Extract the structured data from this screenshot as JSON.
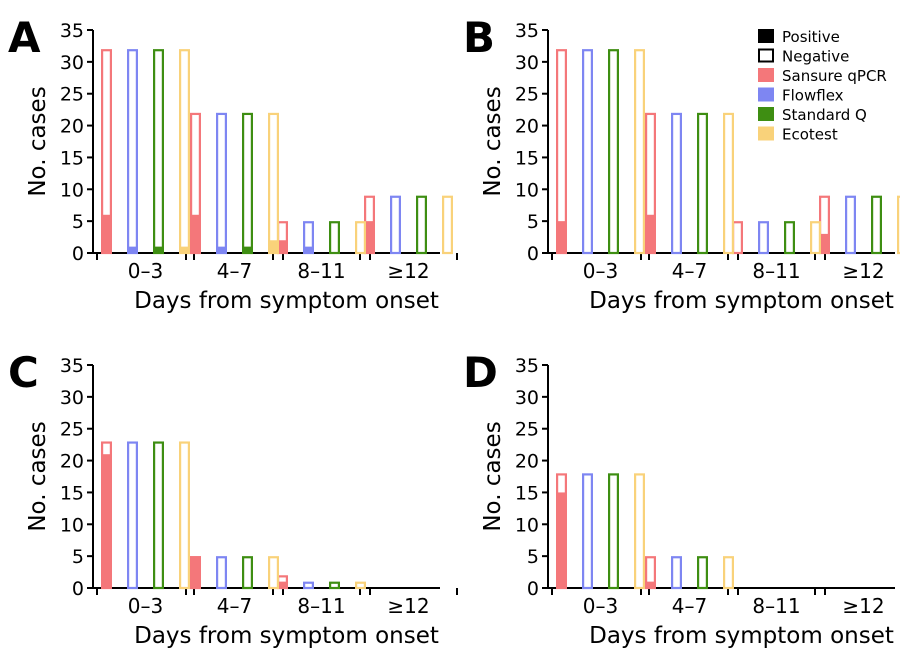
{
  "chart_data": [
    {
      "panel": "A",
      "type": "bar",
      "stacked": "positive + negative",
      "title": "",
      "xlabel": "Days from symptom onset",
      "ylabel": "No. cases",
      "ylim": [
        0,
        35
      ],
      "yticks": [
        "0",
        "5",
        "10",
        "15",
        "20",
        "25",
        "30",
        "35"
      ],
      "categories": [
        "0–3",
        "4–7",
        "8–11",
        "≥12"
      ],
      "series": [
        {
          "name": "Sansure qPCR",
          "color": "#F4777A",
          "total": [
            32,
            22,
            5,
            9
          ],
          "positive": [
            6,
            6,
            2,
            5
          ]
        },
        {
          "name": "Flowflex",
          "color": "#7E86F2",
          "total": [
            32,
            22,
            5,
            9
          ],
          "positive": [
            1,
            1,
            1,
            0
          ]
        },
        {
          "name": "Standard Q",
          "color": "#3E8E12",
          "total": [
            32,
            22,
            5,
            9
          ],
          "positive": [
            1,
            1,
            0,
            0
          ]
        },
        {
          "name": "Ecotest",
          "color": "#F9D27A",
          "total": [
            32,
            22,
            5,
            9
          ],
          "positive": [
            1,
            2,
            0,
            0
          ]
        }
      ]
    },
    {
      "panel": "B",
      "type": "bar",
      "stacked": "positive + negative",
      "title": "",
      "xlabel": "Days from symptom onset",
      "ylabel": "No. cases",
      "ylim": [
        0,
        35
      ],
      "yticks": [
        "0",
        "5",
        "10",
        "15",
        "20",
        "25",
        "30",
        "35"
      ],
      "categories": [
        "0–3",
        "4–7",
        "8–11",
        "≥12"
      ],
      "series": [
        {
          "name": "Sansure qPCR",
          "color": "#F4777A",
          "total": [
            32,
            22,
            5,
            9
          ],
          "positive": [
            5,
            6,
            0,
            3
          ]
        },
        {
          "name": "Flowflex",
          "color": "#7E86F2",
          "total": [
            32,
            22,
            5,
            9
          ],
          "positive": [
            0,
            0,
            0,
            0
          ]
        },
        {
          "name": "Standard Q",
          "color": "#3E8E12",
          "total": [
            32,
            22,
            5,
            9
          ],
          "positive": [
            0,
            0,
            0,
            0
          ]
        },
        {
          "name": "Ecotest",
          "color": "#F9D27A",
          "total": [
            32,
            22,
            5,
            9
          ],
          "positive": [
            0,
            0,
            0,
            0
          ]
        }
      ]
    },
    {
      "panel": "C",
      "type": "bar",
      "stacked": "positive + negative",
      "title": "",
      "xlabel": "Days from symptom onset",
      "ylabel": "No. cases",
      "ylim": [
        0,
        35
      ],
      "yticks": [
        "0",
        "5",
        "10",
        "15",
        "20",
        "25",
        "30",
        "35"
      ],
      "categories": [
        "0–3",
        "4–7",
        "8–11",
        "≥12"
      ],
      "series": [
        {
          "name": "Sansure qPCR",
          "color": "#F4777A",
          "total": [
            23,
            5,
            2,
            0
          ],
          "positive": [
            21,
            5,
            1,
            0
          ]
        },
        {
          "name": "Flowflex",
          "color": "#7E86F2",
          "total": [
            23,
            5,
            1,
            0
          ],
          "positive": [
            0,
            0,
            0,
            0
          ]
        },
        {
          "name": "Standard Q",
          "color": "#3E8E12",
          "total": [
            23,
            5,
            1,
            0
          ],
          "positive": [
            0,
            0,
            0,
            0
          ]
        },
        {
          "name": "Ecotest",
          "color": "#F9D27A",
          "total": [
            23,
            5,
            1,
            0
          ],
          "positive": [
            0,
            0,
            0,
            0
          ]
        }
      ]
    },
    {
      "panel": "D",
      "type": "bar",
      "stacked": "positive + negative",
      "title": "",
      "xlabel": "Days from symptom onset",
      "ylabel": "No. cases",
      "ylim": [
        0,
        35
      ],
      "yticks": [
        "0",
        "5",
        "10",
        "15",
        "20",
        "25",
        "30",
        "35"
      ],
      "categories": [
        "0–3",
        "4–7",
        "8–11",
        "≥12"
      ],
      "series": [
        {
          "name": "Sansure qPCR",
          "color": "#F4777A",
          "total": [
            18,
            5,
            0,
            0
          ],
          "positive": [
            15,
            1,
            0,
            0
          ]
        },
        {
          "name": "Flowflex",
          "color": "#7E86F2",
          "total": [
            18,
            5,
            0,
            0
          ],
          "positive": [
            0,
            0,
            0,
            0
          ]
        },
        {
          "name": "Standard Q",
          "color": "#3E8E12",
          "total": [
            18,
            5,
            0,
            0
          ],
          "positive": [
            0,
            0,
            0,
            0
          ]
        },
        {
          "name": "Ecotest",
          "color": "#F9D27A",
          "total": [
            18,
            5,
            0,
            0
          ],
          "positive": [
            0,
            0,
            0,
            0
          ]
        }
      ]
    }
  ],
  "legend": {
    "placement": "top-right of panel B",
    "items": [
      {
        "label": "Positive",
        "style": "filled",
        "color": "#000000"
      },
      {
        "label": "Negative",
        "style": "outline",
        "color": "#000000"
      },
      {
        "label": "Sansure qPCR",
        "style": "filled",
        "color": "#F4777A"
      },
      {
        "label": "Flowflex",
        "style": "filled",
        "color": "#7E86F2"
      },
      {
        "label": "Standard Q",
        "style": "filled",
        "color": "#3E8E12"
      },
      {
        "label": "Ecotest",
        "style": "filled",
        "color": "#F9D27A"
      }
    ]
  }
}
